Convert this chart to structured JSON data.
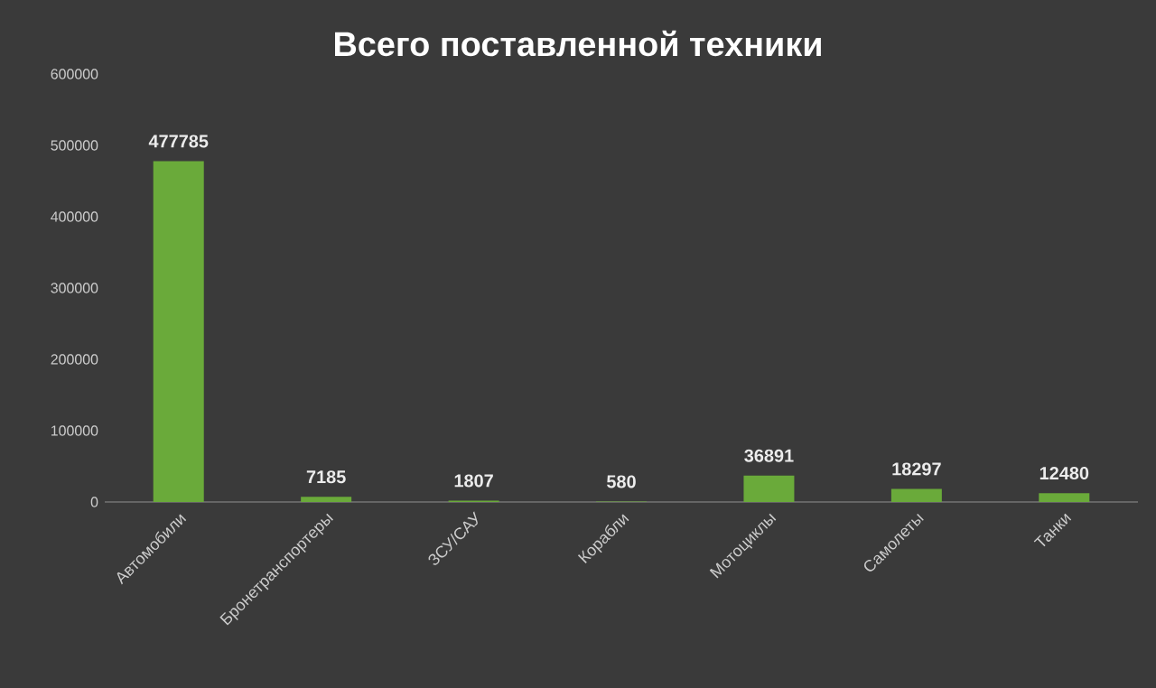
{
  "chart_data": {
    "type": "bar",
    "title": "Всего поставленной техники",
    "categories": [
      "Автомобили",
      "Бронетранспортеры",
      "ЗСУ/САУ",
      "Корабли",
      "Мотоциклы",
      "Самолеты",
      "Танки"
    ],
    "values": [
      477785,
      7185,
      1807,
      580,
      36891,
      18297,
      12480
    ],
    "color": "#6aaa3a",
    "ylim": [
      0,
      600000
    ],
    "yticks": [
      0,
      100000,
      200000,
      300000,
      400000,
      500000,
      600000
    ],
    "data_labels": true,
    "grid": false
  }
}
